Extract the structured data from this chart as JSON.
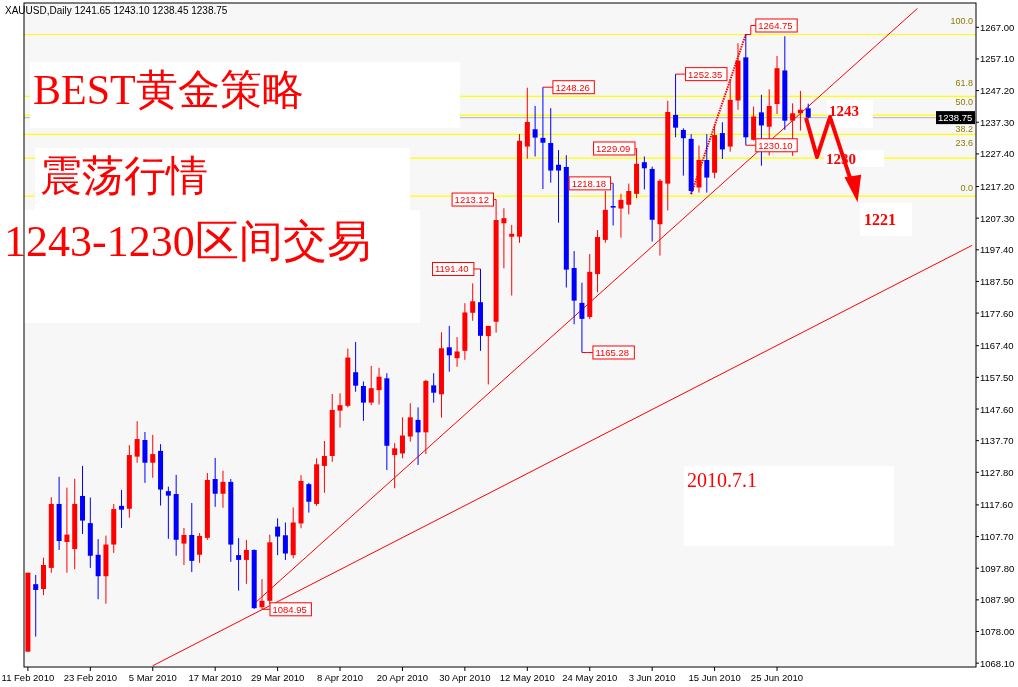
{
  "chart_data": {
    "type": "candlestick",
    "title": "XAUUSD,Daily 1241.65 1243.10 1238.45 1238.75",
    "categories": [
      "11 Feb 2010",
      null,
      null,
      null,
      null,
      null,
      null,
      null,
      "23 Feb 2010",
      null,
      null,
      null,
      null,
      null,
      null,
      null,
      "5 Mar 2010",
      null,
      null,
      null,
      null,
      null,
      null,
      null,
      "17 Mar 2010",
      null,
      null,
      null,
      null,
      null,
      null,
      null,
      "29 Mar 2010",
      null,
      null,
      null,
      null,
      null,
      null,
      null,
      "8 Apr 2010",
      null,
      null,
      null,
      null,
      null,
      null,
      null,
      "20 Apr 2010",
      null,
      null,
      null,
      null,
      null,
      null,
      null,
      "30 Apr 2010",
      null,
      null,
      null,
      null,
      null,
      null,
      null,
      "12 May 2010",
      null,
      null,
      null,
      null,
      null,
      null,
      null,
      "24 May 2010",
      null,
      null,
      null,
      null,
      null,
      null,
      null,
      "3 Jun 2010",
      null,
      null,
      null,
      null,
      null,
      null,
      null,
      "15 Jun 2010",
      null,
      null,
      null,
      null,
      null,
      null,
      null,
      "25 Jun 2010",
      null,
      null,
      null,
      null,
      null,
      null,
      null,
      null,
      null,
      null,
      null,
      null,
      null,
      null,
      null,
      null,
      null,
      null,
      null,
      null,
      null,
      null,
      null,
      null,
      null
    ],
    "ohlc": [
      [
        1071.7,
        1096.4,
        1071.7,
        1096.4
      ],
      [
        1092.8,
        1095.7,
        1076.4,
        1091.0
      ],
      [
        1091.3,
        1101.1,
        1089.4,
        1098.8
      ],
      [
        1097.9,
        1120.0,
        1096.4,
        1117.9
      ],
      [
        1117.9,
        1126.4,
        1103.5,
        1106.3
      ],
      [
        1106.0,
        1123.0,
        1096.4,
        1108.3
      ],
      [
        1103.8,
        1125.8,
        1097.5,
        1117.9
      ],
      [
        1120.4,
        1129.8,
        1108.5,
        1112.7
      ],
      [
        1111.9,
        1119.9,
        1097.9,
        1101.7
      ],
      [
        1102.0,
        1106.9,
        1088.1,
        1095.3
      ],
      [
        1095.3,
        1108.0,
        1086.7,
        1105.2
      ],
      [
        1105.2,
        1117.9,
        1102.6,
        1116.3
      ],
      [
        1117.3,
        1122.3,
        1110.4,
        1116.1
      ],
      [
        1116.4,
        1136.3,
        1113.6,
        1133.2
      ],
      [
        1132.7,
        1143.8,
        1130.8,
        1138.2
      ],
      [
        1137.9,
        1140.4,
        1124.5,
        1130.8
      ],
      [
        1130.8,
        1139.5,
        1126.1,
        1133.5
      ],
      [
        1134.5,
        1136.6,
        1117.4,
        1122.4
      ],
      [
        1121.9,
        1123.3,
        1107.0,
        1120.5
      ],
      [
        1121.0,
        1127.0,
        1101.7,
        1106.7
      ],
      [
        1105.5,
        1110.4,
        1098.8,
        1108.2
      ],
      [
        1108.2,
        1118.2,
        1096.6,
        1100.1
      ],
      [
        1102.0,
        1108.8,
        1099.5,
        1107.9
      ],
      [
        1107.3,
        1127.6,
        1106.7,
        1125.4
      ],
      [
        1125.7,
        1132.3,
        1117.0,
        1121.1
      ],
      [
        1121.1,
        1128.3,
        1116.7,
        1124.8
      ],
      [
        1124.8,
        1125.7,
        1099.8,
        1105.2
      ],
      [
        1101.9,
        1107.2,
        1090.8,
        1100.4
      ],
      [
        1100.4,
        1106.6,
        1092.9,
        1103.5
      ],
      [
        1103.5,
        1103.7,
        1085.1,
        1085.3
      ],
      [
        1085.6,
        1094.4,
        1084.95,
        1087.6
      ],
      [
        1087.6,
        1108.3,
        1086.5,
        1105.9
      ],
      [
        1110.8,
        1113.4,
        1101.9,
        1107.7
      ],
      [
        1108.1,
        1112.1,
        1100.4,
        1102.4
      ],
      [
        1101.9,
        1116.8,
        1100.9,
        1112.1
      ],
      [
        1111.8,
        1126.9,
        1110.3,
        1125.1
      ],
      [
        1124.1,
        1124.5,
        1115.2,
        1118.6
      ],
      [
        1117.9,
        1132.2,
        1117.3,
        1130.3
      ],
      [
        1129.8,
        1137.6,
        1121.4,
        1132.9
      ],
      [
        1132.9,
        1152.3,
        1131.1,
        1147.3
      ],
      [
        1147.1,
        1152.5,
        1141.8,
        1148.8
      ],
      [
        1148.6,
        1166.5,
        1148.1,
        1163.7
      ],
      [
        1159.1,
        1168.6,
        1153.0,
        1154.9
      ],
      [
        1154.8,
        1156.2,
        1143.9,
        1149.6
      ],
      [
        1149.6,
        1161.1,
        1148.8,
        1154.1
      ],
      [
        1153.5,
        1160.5,
        1149.0,
        1157.7
      ],
      [
        1157.2,
        1158.8,
        1128.5,
        1136.1
      ],
      [
        1133.2,
        1136.9,
        1122.8,
        1135.3
      ],
      [
        1133.7,
        1145.0,
        1132.2,
        1139.3
      ],
      [
        1139.0,
        1149.4,
        1137.4,
        1145.0
      ],
      [
        1144.2,
        1148.1,
        1130.1,
        1140.3
      ],
      [
        1140.3,
        1156.7,
        1133.5,
        1156.4
      ],
      [
        1155.0,
        1158.8,
        1149.6,
        1152.7
      ],
      [
        1152.2,
        1171.6,
        1144.9,
        1166.6
      ],
      [
        1166.9,
        1173.6,
        1159.3,
        1164.4
      ],
      [
        1163.5,
        1170.1,
        1160.8,
        1165.6
      ],
      [
        1165.8,
        1180.7,
        1163.0,
        1177.8
      ],
      [
        1177.7,
        1186.9,
        1175.2,
        1181.3
      ],
      [
        1181.0,
        1191.4,
        1165.8,
        1170.5
      ],
      [
        1170.4,
        1173.6,
        1155.3,
        1173.6
      ],
      [
        1174.9,
        1213.12,
        1171.5,
        1206.7
      ],
      [
        1205.7,
        1210.4,
        1191.6,
        1207.3
      ],
      [
        1201.5,
        1205.2,
        1183.1,
        1202.4
      ],
      [
        1201.5,
        1233.6,
        1199.6,
        1231.5
      ],
      [
        1229.7,
        1248.1,
        1225.9,
        1237.4
      ],
      [
        1235.1,
        1242.4,
        1226.6,
        1232.5
      ],
      [
        1232.4,
        1248.26,
        1216.4,
        1230.9
      ],
      [
        1230.8,
        1241.7,
        1218.4,
        1222.2
      ],
      [
        1224.0,
        1228.6,
        1205.9,
        1222.2
      ],
      [
        1223.3,
        1227.0,
        1185.6,
        1191.2
      ],
      [
        1191.7,
        1197.0,
        1174.1,
        1181.5
      ],
      [
        1180.8,
        1187.1,
        1165.28,
        1175.8
      ],
      [
        1176.4,
        1196.1,
        1175.7,
        1190.5
      ],
      [
        1189.8,
        1203.6,
        1184.1,
        1201.4
      ],
      [
        1200.5,
        1215.8,
        1199.6,
        1209.9
      ],
      [
        1211.1,
        1218.18,
        1205.0,
        1210.6
      ],
      [
        1210.3,
        1214.9,
        1201.2,
        1213.0
      ],
      [
        1211.5,
        1218.1,
        1208.5,
        1215.8
      ],
      [
        1214.9,
        1229.09,
        1213.5,
        1224.3
      ],
      [
        1224.8,
        1226.6,
        1216.3,
        1222.9
      ],
      [
        1222.7,
        1223.4,
        1200.0,
        1206.8
      ],
      [
        1205.4,
        1219.5,
        1195.6,
        1219.0
      ],
      [
        1218.1,
        1244.0,
        1209.7,
        1240.5
      ],
      [
        1239.6,
        1252.35,
        1232.6,
        1235.6
      ],
      [
        1234.9,
        1235.4,
        1220.6,
        1232.3
      ],
      [
        1232.1,
        1233.6,
        1214.8,
        1215.8
      ],
      [
        1216.9,
        1230.0,
        1215.3,
        1225.5
      ],
      [
        1225.5,
        1233.6,
        1215.3,
        1220.0
      ],
      [
        1221.5,
        1236.2,
        1219.8,
        1233.3
      ],
      [
        1233.9,
        1237.3,
        1225.8,
        1228.8
      ],
      [
        1229.7,
        1250.6,
        1228.1,
        1244.3
      ],
      [
        1244.1,
        1262.0,
        1241.2,
        1256.6
      ],
      [
        1257.6,
        1264.75,
        1230.1,
        1232.6
      ],
      [
        1231.8,
        1242.2,
        1231.6,
        1239.1
      ],
      [
        1240.4,
        1245.9,
        1223.7,
        1236.3
      ],
      [
        1235.9,
        1247.6,
        1226.9,
        1242.4
      ],
      [
        1243.0,
        1258.0,
        1239.9,
        1254.2
      ],
      [
        1253.5,
        1264.2,
        1234.9,
        1237.8
      ],
      [
        1237.8,
        1243.2,
        1226.8,
        1240.1
      ],
      [
        1240.1,
        1247.1,
        1234.7,
        1241.2
      ],
      [
        1241.65,
        1243.1,
        1238.45,
        1238.75
      ],
      null,
      null,
      null,
      null,
      null,
      null,
      null,
      null,
      null,
      null,
      null,
      null,
      null,
      null,
      null,
      null,
      null,
      null,
      null,
      null,
      null
    ],
    "colors": [
      "#ff0000",
      "#0000ff",
      "#ff0000",
      "#ff0000",
      "#0000ff",
      "#ff0000",
      "#ff0000",
      "#0000ff",
      "#0000ff",
      "#0000ff",
      "#ff0000",
      "#ff0000",
      "#0000ff",
      "#ff0000",
      "#ff0000",
      "#0000ff",
      "#ff0000",
      "#0000ff",
      "#0000ff",
      "#0000ff",
      "#ff0000",
      "#0000ff",
      "#ff0000",
      "#ff0000",
      "#0000ff",
      "#ff0000",
      "#0000ff",
      "#0000ff",
      "#ff0000",
      "#0000ff",
      "#ff0000",
      "#ff0000",
      "#0000ff",
      "#0000ff",
      "#ff0000",
      "#ff0000",
      "#0000ff",
      "#ff0000",
      "#ff0000",
      "#ff0000",
      "#ff0000",
      "#ff0000",
      "#0000ff",
      "#0000ff",
      "#ff0000",
      "#ff0000",
      "#0000ff",
      "#ff0000",
      "#ff0000",
      "#ff0000",
      "#0000ff",
      "#ff0000",
      "#0000ff",
      "#ff0000",
      "#0000ff",
      "#ff0000",
      "#ff0000",
      "#ff0000",
      "#0000ff",
      "#ff0000",
      "#ff0000",
      "#ff0000",
      "#ff0000",
      "#ff0000",
      "#ff0000",
      "#0000ff",
      "#0000ff",
      "#0000ff",
      "#0000ff",
      "#0000ff",
      "#0000ff",
      "#0000ff",
      "#ff0000",
      "#ff0000",
      "#ff0000",
      "#0000ff",
      "#ff0000",
      "#ff0000",
      "#ff0000",
      "#0000ff",
      "#0000ff",
      "#ff0000",
      "#ff0000",
      "#0000ff",
      "#0000ff",
      "#0000ff",
      "#ff0000",
      "#0000ff",
      "#ff0000",
      "#0000ff",
      "#ff0000",
      "#ff0000",
      "#0000ff",
      "#ff0000",
      "#0000ff",
      "#ff0000",
      "#ff0000",
      "#0000ff",
      "#ff0000",
      "#ff0000",
      "#0000ff",
      null,
      null,
      null,
      null,
      null,
      null,
      null,
      null,
      null,
      null,
      null,
      null,
      null,
      null,
      null,
      null,
      null,
      null,
      null,
      null,
      null
    ],
    "series": [
      {
        "type": "line",
        "color": "#ff0000",
        "values": [
          null,
          null,
          null,
          null,
          null,
          null,
          null,
          null,
          null,
          null,
          null,
          null,
          null,
          null,
          null,
          null,
          null,
          null,
          null,
          null,
          null,
          null,
          null,
          null,
          null,
          null,
          null,
          null,
          null,
          1086.7,
          null,
          null,
          null,
          null,
          null,
          null,
          null,
          null,
          null,
          null,
          null,
          null,
          null,
          null,
          null,
          null,
          null,
          null,
          null,
          null,
          null,
          null,
          null,
          null,
          null,
          null,
          null,
          null,
          null,
          null,
          null,
          null,
          null,
          null,
          null,
          null,
          null,
          null,
          null,
          null,
          null,
          null,
          null,
          null,
          null,
          null,
          null,
          null,
          null,
          null,
          null,
          null,
          null,
          null,
          null,
          null,
          null,
          null,
          null,
          null,
          null,
          null,
          null,
          null,
          null,
          null,
          null,
          null,
          null,
          null,
          null,
          null,
          null,
          null,
          null,
          null,
          null,
          null,
          null,
          null,
          null,
          null,
          null,
          null,
          1272.9,
          null,
          null,
          null,
          null,
          null,
          null,
          null
        ]
      },
      {
        "type": "line",
        "color": "#ff0000",
        "values": [
          null,
          null,
          null,
          null,
          null,
          null,
          null,
          null,
          null,
          null,
          null,
          null,
          null,
          null,
          null,
          null,
          1067.3,
          null,
          null,
          null,
          null,
          null,
          null,
          null,
          null,
          null,
          null,
          null,
          null,
          null,
          null,
          null,
          null,
          null,
          null,
          null,
          null,
          null,
          null,
          null,
          null,
          null,
          null,
          null,
          null,
          null,
          null,
          null,
          null,
          null,
          null,
          null,
          null,
          null,
          null,
          null,
          null,
          null,
          null,
          null,
          null,
          null,
          null,
          null,
          null,
          null,
          null,
          null,
          null,
          null,
          null,
          null,
          null,
          null,
          null,
          null,
          null,
          null,
          null,
          null,
          null,
          null,
          null,
          null,
          null,
          null,
          null,
          null,
          null,
          null,
          null,
          null,
          null,
          null,
          null,
          null,
          null,
          null,
          null,
          null,
          null,
          null,
          null,
          null,
          null,
          null,
          null,
          null,
          null,
          null,
          null,
          null,
          null,
          null,
          null,
          null,
          null,
          null,
          null,
          null,
          null,
          1198.8
        ]
      },
      {
        "type": "line",
        "color": "#ff0000",
        "line_style": "dotted",
        "values": [
          null,
          null,
          null,
          null,
          null,
          null,
          null,
          null,
          null,
          null,
          null,
          null,
          null,
          null,
          null,
          null,
          null,
          null,
          null,
          null,
          null,
          null,
          null,
          null,
          null,
          null,
          null,
          null,
          null,
          null,
          null,
          null,
          null,
          null,
          null,
          null,
          null,
          null,
          null,
          null,
          null,
          null,
          null,
          null,
          null,
          null,
          null,
          null,
          null,
          null,
          null,
          null,
          null,
          null,
          null,
          null,
          null,
          null,
          null,
          null,
          null,
          null,
          null,
          null,
          null,
          null,
          null,
          null,
          null,
          null,
          null,
          null,
          null,
          null,
          null,
          null,
          null,
          null,
          null,
          null,
          null,
          null,
          null,
          null,
          null,
          1214.8,
          null,
          null,
          null,
          null,
          null,
          null,
          1264.8,
          null,
          null,
          null,
          null,
          null,
          null,
          null,
          null,
          null,
          null,
          null,
          null,
          null,
          null,
          null,
          null,
          null,
          null,
          null,
          null,
          null,
          null,
          null,
          null,
          null,
          null,
          null,
          null,
          null
        ]
      }
    ],
    "ylim": [
      1066.9,
      1274.6
    ],
    "yticks": [
      {
        "value": 1267.0,
        "label": "1267.00"
      },
      {
        "value": 1257.1,
        "label": "1257.10"
      },
      {
        "value": 1247.2,
        "label": "1247.20"
      },
      {
        "value": 1237.3,
        "label": "1237.30"
      },
      {
        "value": 1227.4,
        "label": "1227.40"
      },
      {
        "value": 1217.2,
        "label": "1217.20"
      },
      {
        "value": 1207.3,
        "label": "1207.30"
      },
      {
        "value": 1197.4,
        "label": "1197.40"
      },
      {
        "value": 1187.5,
        "label": "1187.50"
      },
      {
        "value": 1177.6,
        "label": "1177.60"
      },
      {
        "value": 1167.4,
        "label": "1167.40"
      },
      {
        "value": 1157.5,
        "label": "1157.50"
      },
      {
        "value": 1147.6,
        "label": "1147.60"
      },
      {
        "value": 1137.7,
        "label": "1137.70"
      },
      {
        "value": 1127.8,
        "label": "1127.80"
      },
      {
        "value": 1117.6,
        "label": "1117.60"
      },
      {
        "value": 1107.7,
        "label": "1107.70"
      },
      {
        "value": 1097.8,
        "label": "1097.80"
      },
      {
        "value": 1087.9,
        "label": "1087.90"
      },
      {
        "value": 1078.0,
        "label": "1078.00"
      },
      {
        "value": 1068.1,
        "label": "1068.10"
      }
    ],
    "ref_lines": [
      {
        "axis": "y",
        "value": 1264.75,
        "color": "#ffff00"
      },
      {
        "axis": "y",
        "value": 1245.4,
        "color": "#ffff00"
      },
      {
        "axis": "y",
        "value": 1239.5,
        "color": "#ffff00"
      },
      {
        "axis": "y",
        "value": 1233.5,
        "color": "#ffff00"
      },
      {
        "axis": "y",
        "value": 1226.1,
        "color": "#ffff00"
      },
      {
        "axis": "y",
        "value": 1214.2,
        "color": "#ffff00"
      },
      {
        "axis": "y",
        "value": 1238.75,
        "label": "1238.75",
        "color": "#c0c0c0"
      }
    ],
    "annotations": [
      "BEST黄金策略",
      "震荡行情",
      "1243-1230区间交易",
      "2010.7.1",
      "1243",
      "1230",
      "1221",
      {
        "text": "1084.95",
        "y": 1084.95
      },
      {
        "text": "1191.40",
        "y": 1191.4
      },
      {
        "text": "1213.12",
        "y": 1213.12
      },
      {
        "text": "1248.26",
        "y": 1248.26
      },
      {
        "text": "1165.28",
        "y": 1165.28
      },
      {
        "text": "1218.18",
        "y": 1218.18
      },
      {
        "text": "1229.09",
        "y": 1229.09
      },
      {
        "text": "1252.35",
        "y": 1252.35
      },
      {
        "text": "1264.75",
        "y": 1264.75
      },
      {
        "text": "1230.10",
        "y": 1230.1
      },
      "100.0",
      "61.8",
      "50.0",
      "38.2",
      "23.6",
      "0.0"
    ]
  }
}
